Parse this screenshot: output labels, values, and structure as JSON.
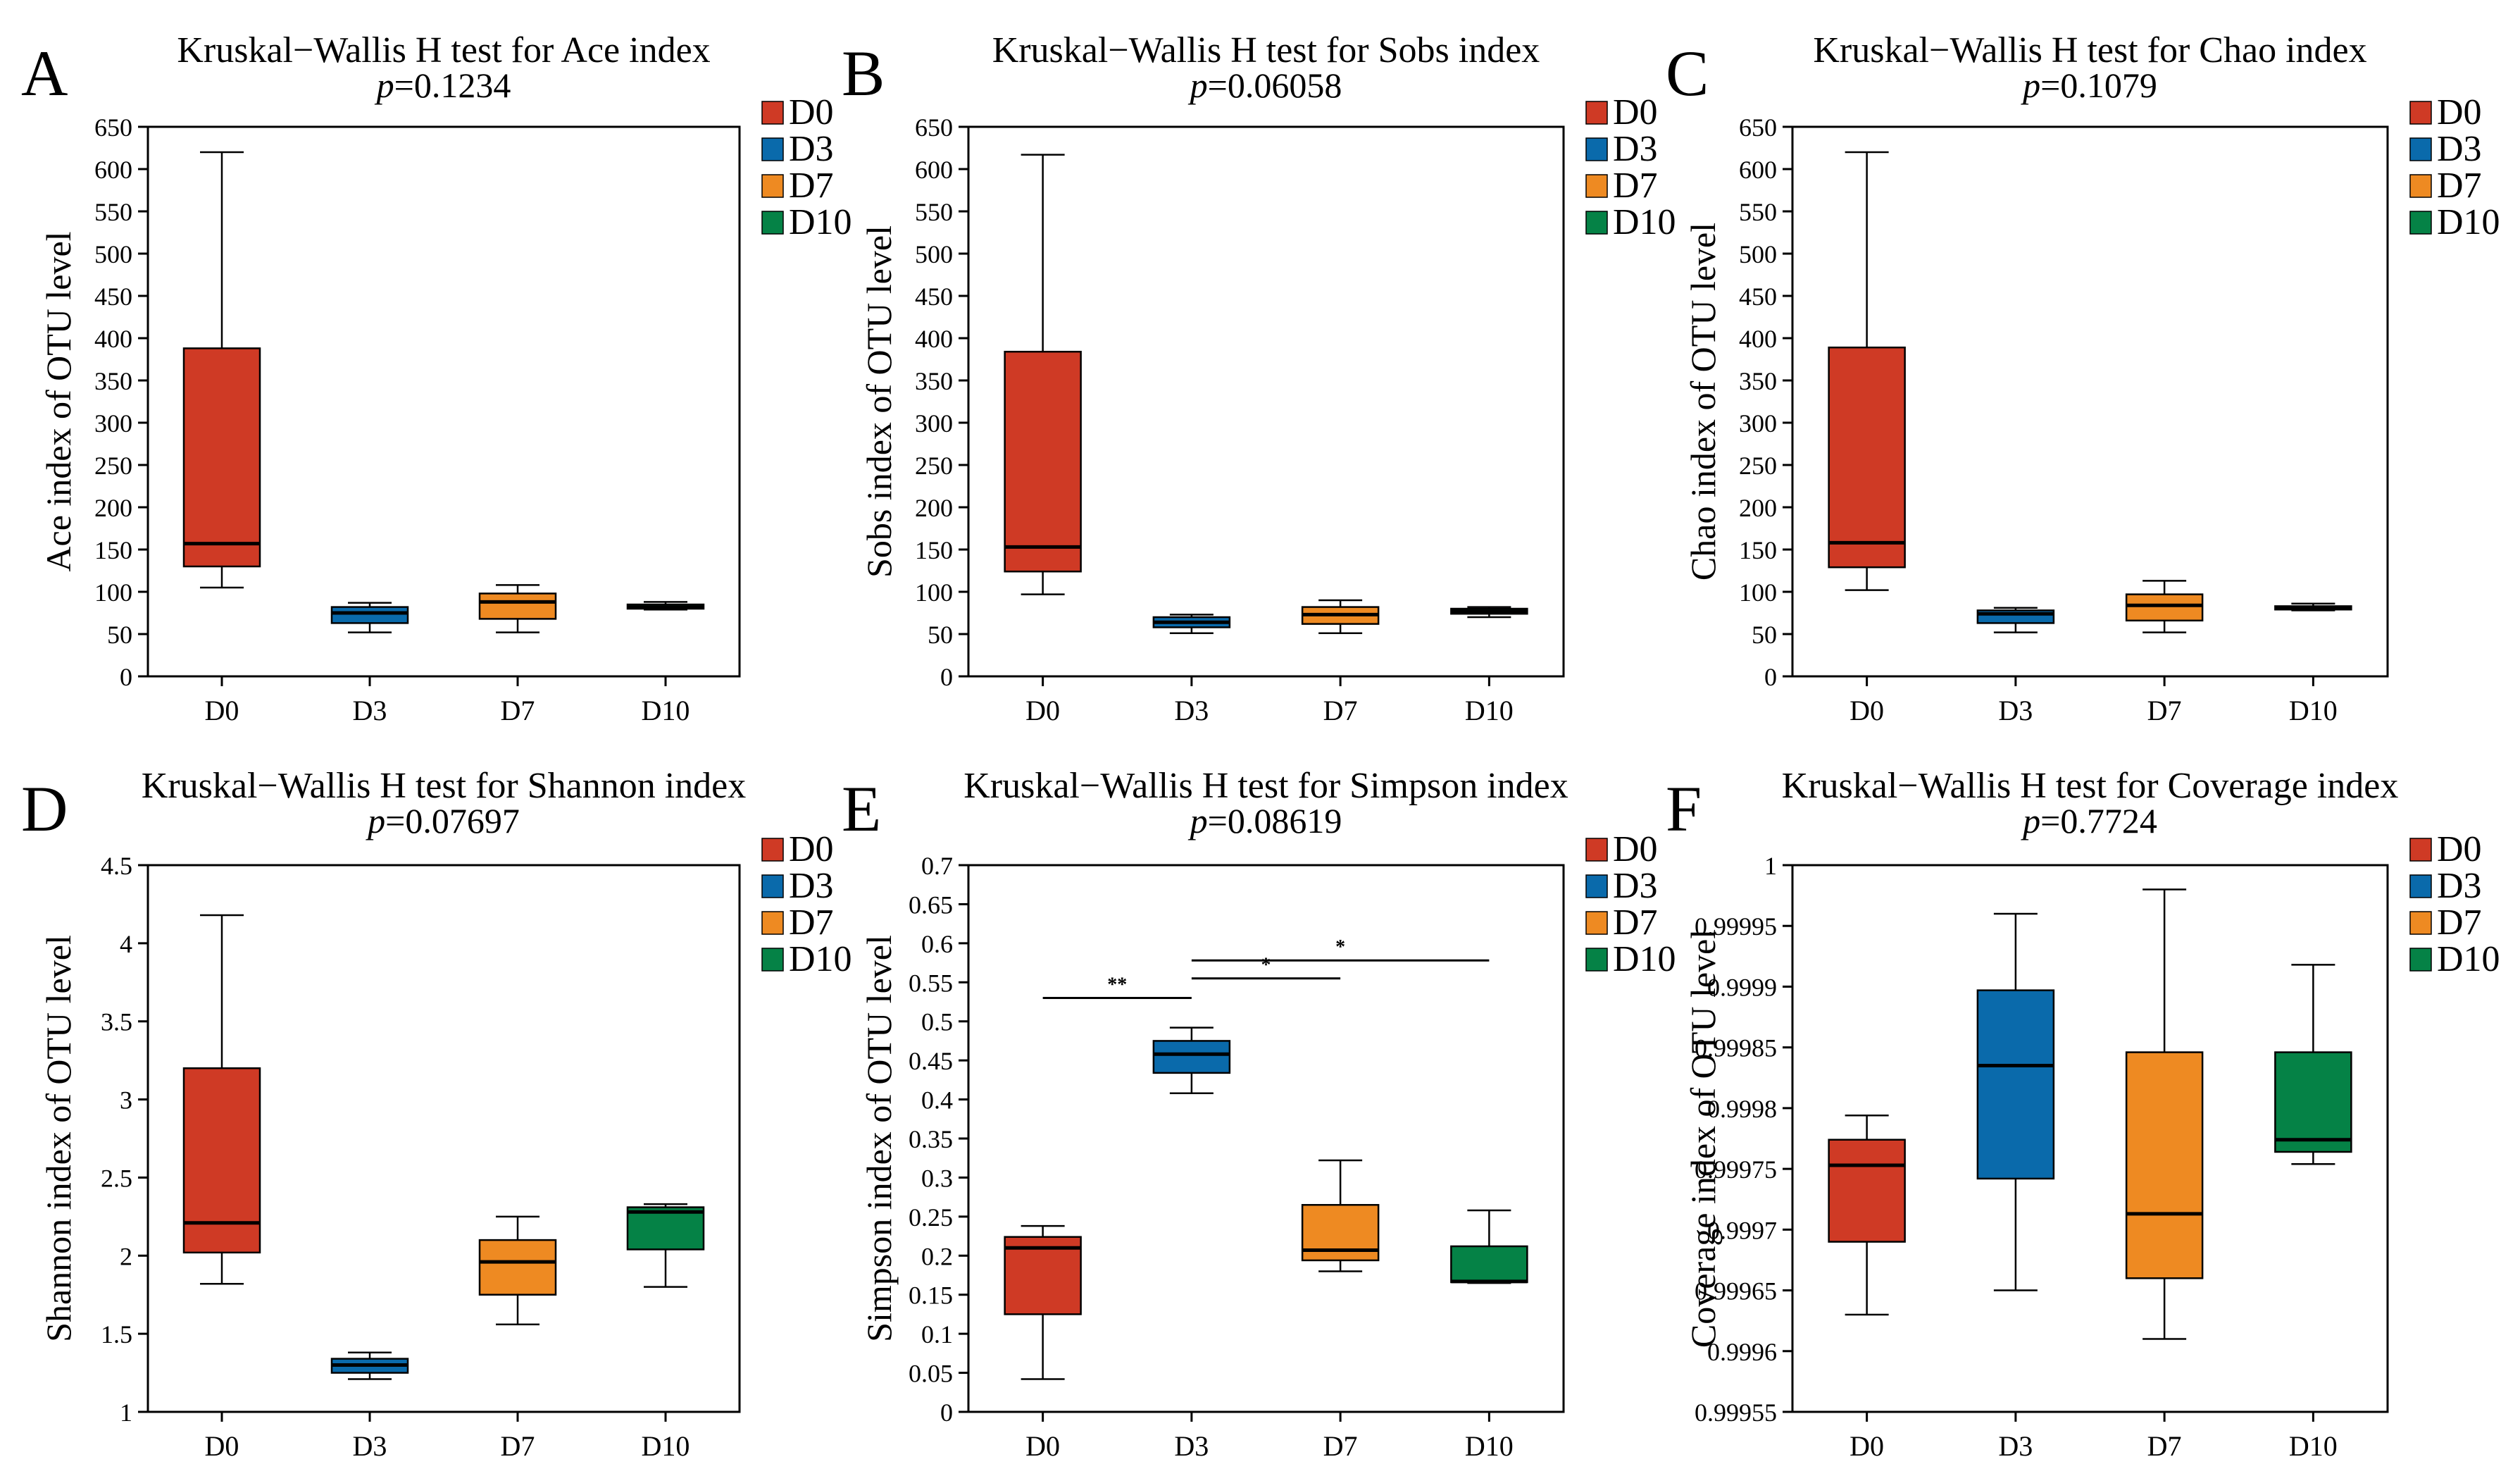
{
  "chart_data": [
    {
      "letter": "A",
      "type": "box",
      "title": "Kruskal−Wallis H test for Ace index",
      "p_prefix": "p",
      "p_value": "=0.1234",
      "ylabel": "Ace index of OTU level",
      "xlabel": "",
      "ylim": [
        0,
        650
      ],
      "yticks": [
        0,
        50,
        100,
        150,
        200,
        250,
        300,
        350,
        400,
        450,
        500,
        550,
        600,
        650
      ],
      "ytick_labels": [
        "0",
        "50",
        "100",
        "150",
        "200",
        "250",
        "300",
        "350",
        "400",
        "450",
        "500",
        "550",
        "600",
        "650"
      ],
      "categories": [
        "D0",
        "D3",
        "D7",
        "D10"
      ],
      "legend": [
        "D0",
        "D3",
        "D7",
        "D10"
      ],
      "boxes": [
        {
          "min": 105,
          "q1": 130,
          "median": 157,
          "q3": 388,
          "max": 620
        },
        {
          "min": 52,
          "q1": 63,
          "median": 75,
          "q3": 82,
          "max": 87
        },
        {
          "min": 52,
          "q1": 68,
          "median": 88,
          "q3": 98,
          "max": 108
        },
        {
          "min": 79,
          "q1": 80,
          "median": 82,
          "q3": 85,
          "max": 88
        }
      ],
      "significance": []
    },
    {
      "letter": "B",
      "type": "box",
      "title": "Kruskal−Wallis H test for Sobs index",
      "p_prefix": "p",
      "p_value": "=0.06058",
      "ylabel": "Sobs index of OTU level",
      "xlabel": "",
      "ylim": [
        0,
        650
      ],
      "yticks": [
        0,
        50,
        100,
        150,
        200,
        250,
        300,
        350,
        400,
        450,
        500,
        550,
        600,
        650
      ],
      "ytick_labels": [
        "0",
        "50",
        "100",
        "150",
        "200",
        "250",
        "300",
        "350",
        "400",
        "450",
        "500",
        "550",
        "600",
        "650"
      ],
      "categories": [
        "D0",
        "D3",
        "D7",
        "D10"
      ],
      "legend": [
        "D0",
        "D3",
        "D7",
        "D10"
      ],
      "boxes": [
        {
          "min": 97,
          "q1": 124,
          "median": 153,
          "q3": 384,
          "max": 617
        },
        {
          "min": 51,
          "q1": 58,
          "median": 64,
          "q3": 70,
          "max": 73
        },
        {
          "min": 51,
          "q1": 62,
          "median": 73,
          "q3": 82,
          "max": 90
        },
        {
          "min": 70,
          "q1": 74,
          "median": 77,
          "q3": 80,
          "max": 82
        }
      ],
      "significance": []
    },
    {
      "letter": "C",
      "type": "box",
      "title": "Kruskal−Wallis H test for Chao index",
      "p_prefix": "p",
      "p_value": "=0.1079",
      "ylabel": "Chao index of OTU level",
      "xlabel": "",
      "ylim": [
        0,
        650
      ],
      "yticks": [
        0,
        50,
        100,
        150,
        200,
        250,
        300,
        350,
        400,
        450,
        500,
        550,
        600,
        650
      ],
      "ytick_labels": [
        "0",
        "50",
        "100",
        "150",
        "200",
        "250",
        "300",
        "350",
        "400",
        "450",
        "500",
        "550",
        "600",
        "650"
      ],
      "categories": [
        "D0",
        "D3",
        "D7",
        "D10"
      ],
      "legend": [
        "D0",
        "D3",
        "D7",
        "D10"
      ],
      "boxes": [
        {
          "min": 102,
          "q1": 129,
          "median": 158,
          "q3": 389,
          "max": 620
        },
        {
          "min": 52,
          "q1": 63,
          "median": 74,
          "q3": 78,
          "max": 81
        },
        {
          "min": 52,
          "q1": 66,
          "median": 84,
          "q3": 97,
          "max": 113
        },
        {
          "min": 78,
          "q1": 79,
          "median": 81,
          "q3": 83,
          "max": 86
        }
      ],
      "significance": []
    },
    {
      "letter": "D",
      "type": "box",
      "title": "Kruskal−Wallis H test for Shannon index",
      "p_prefix": "p",
      "p_value": "=0.07697",
      "ylabel": "Shannon index of OTU level",
      "xlabel": "",
      "ylim": [
        1,
        4.5
      ],
      "yticks": [
        1,
        1.5,
        2,
        2.5,
        3,
        3.5,
        4,
        4.5
      ],
      "ytick_labels": [
        "1",
        "1.5",
        "2",
        "2.5",
        "3",
        "3.5",
        "4",
        "4.5"
      ],
      "categories": [
        "D0",
        "D3",
        "D7",
        "D10"
      ],
      "legend": [
        "D0",
        "D3",
        "D7",
        "D10"
      ],
      "boxes": [
        {
          "min": 1.82,
          "q1": 2.02,
          "median": 2.21,
          "q3": 3.2,
          "max": 4.18
        },
        {
          "min": 1.21,
          "q1": 1.25,
          "median": 1.3,
          "q3": 1.34,
          "max": 1.38
        },
        {
          "min": 1.56,
          "q1": 1.75,
          "median": 1.96,
          "q3": 2.1,
          "max": 2.25
        },
        {
          "min": 1.8,
          "q1": 2.04,
          "median": 2.28,
          "q3": 2.31,
          "max": 2.33
        }
      ],
      "significance": []
    },
    {
      "letter": "E",
      "type": "box",
      "title": "Kruskal−Wallis H test for Simpson index",
      "p_prefix": "p",
      "p_value": "=0.08619",
      "ylabel": "Simpson index of OTU level",
      "xlabel": "",
      "ylim": [
        0,
        0.7
      ],
      "yticks": [
        0,
        0.05,
        0.1,
        0.15,
        0.2,
        0.25,
        0.3,
        0.35,
        0.4,
        0.45,
        0.5,
        0.55,
        0.6,
        0.65,
        0.7
      ],
      "ytick_labels": [
        "0",
        "0.05",
        "0.1",
        "0.15",
        "0.2",
        "0.25",
        "0.3",
        "0.35",
        "0.4",
        "0.45",
        "0.5",
        "0.55",
        "0.6",
        "0.65",
        "0.7"
      ],
      "categories": [
        "D0",
        "D3",
        "D7",
        "D10"
      ],
      "legend": [
        "D0",
        "D3",
        "D7",
        "D10"
      ],
      "boxes": [
        {
          "min": 0.042,
          "q1": 0.125,
          "median": 0.21,
          "q3": 0.224,
          "max": 0.238
        },
        {
          "min": 0.408,
          "q1": 0.434,
          "median": 0.458,
          "q3": 0.475,
          "max": 0.492
        },
        {
          "min": 0.18,
          "q1": 0.194,
          "median": 0.207,
          "q3": 0.265,
          "max": 0.322
        },
        {
          "min": 0.165,
          "q1": 0.166,
          "median": 0.167,
          "q3": 0.212,
          "max": 0.258
        }
      ],
      "significance": [
        {
          "from": 0,
          "to": 1,
          "y": 0.53,
          "label": "**"
        },
        {
          "from": 1,
          "to": 2,
          "y": 0.555,
          "label": "*"
        },
        {
          "from": 1,
          "to": 3,
          "y": 0.578,
          "label": "*"
        }
      ]
    },
    {
      "letter": "F",
      "type": "box",
      "title": "Kruskal−Wallis H test for Coverage index",
      "p_prefix": "p",
      "p_value": "=0.7724",
      "ylabel": "Coverage index of OTU level",
      "xlabel": "",
      "ylim": [
        0.99955,
        1
      ],
      "yticks": [
        0.99955,
        0.9996,
        0.99965,
        0.9997,
        0.99975,
        0.9998,
        0.99985,
        0.9999,
        0.99995,
        1
      ],
      "ytick_labels": [
        "0.99955",
        "0.9996",
        "0.99965",
        "0.9997",
        "0.99975",
        "0.9998",
        "0.99985",
        "0.9999",
        "0.99995",
        "1"
      ],
      "categories": [
        "D0",
        "D3",
        "D7",
        "D10"
      ],
      "legend": [
        "D0",
        "D3",
        "D7",
        "D10"
      ],
      "boxes": [
        {
          "min": 0.99963,
          "q1": 0.99969,
          "median": 0.999753,
          "q3": 0.999774,
          "max": 0.999794
        },
        {
          "min": 0.99965,
          "q1": 0.999742,
          "median": 0.999835,
          "q3": 0.999897,
          "max": 0.99996
        },
        {
          "min": 0.99961,
          "q1": 0.99966,
          "median": 0.999713,
          "q3": 0.999846,
          "max": 0.99998
        },
        {
          "min": 0.999754,
          "q1": 0.999764,
          "median": 0.999774,
          "q3": 0.999846,
          "max": 0.999918
        }
      ],
      "significance": []
    }
  ],
  "colors": {
    "D0": "#cf3a25",
    "D3": "#0a6aab",
    "D7": "#ee8a22",
    "D10": "#058246",
    "axis": "#000000",
    "background": "#ffffff"
  }
}
